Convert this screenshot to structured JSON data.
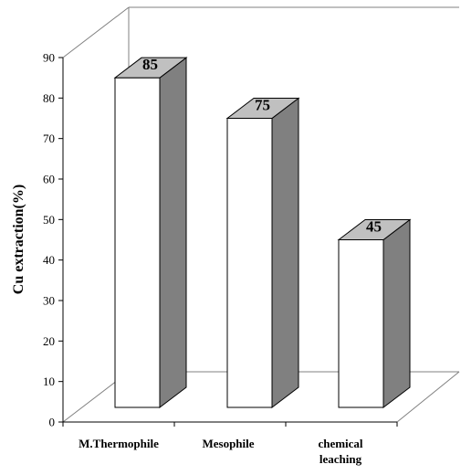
{
  "chart_data": {
    "type": "bar",
    "style": "3d",
    "categories": [
      "M.Thermophile",
      "Mesophile",
      "chemical leaching"
    ],
    "category_lines": [
      [
        "M.Thermophile"
      ],
      [
        "Mesophile"
      ],
      [
        "chemical",
        "leaching"
      ]
    ],
    "values": [
      85,
      75,
      45
    ],
    "data_labels": [
      "85",
      "75",
      "45"
    ],
    "ylabel": "Cu extraction(%)",
    "xlabel": "",
    "ylim": [
      0,
      90
    ],
    "yticks": [
      0,
      10,
      20,
      30,
      40,
      50,
      60,
      70,
      80,
      90
    ],
    "grid": false,
    "legend": "none",
    "colors": {
      "bar_front": "#ffffff",
      "bar_top": "#c0c0c0",
      "bar_side": "#808080",
      "outline": "#000000",
      "wall": "#808080"
    }
  }
}
